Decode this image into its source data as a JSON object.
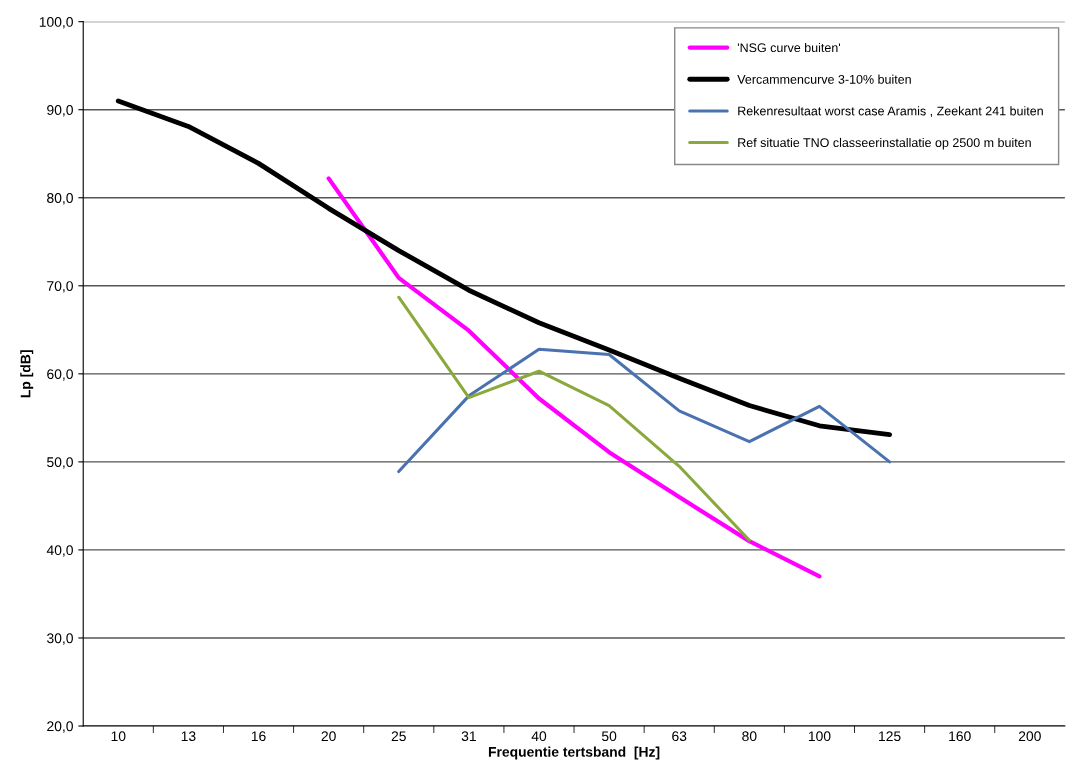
{
  "chart_data": {
    "type": "line",
    "xlabel": "Frequentie tertsband  [Hz]",
    "ylabel": "Lp [dB]",
    "categories": [
      "10",
      "13",
      "16",
      "20",
      "25",
      "31",
      "40",
      "50",
      "63",
      "80",
      "100",
      "125",
      "160",
      "200"
    ],
    "series": [
      {
        "name": "'NSG curve buiten'",
        "color": "#ff00ff",
        "values": [
          null,
          null,
          null,
          82.2,
          70.9,
          64.9,
          57.2,
          51.1,
          46.0,
          41.0,
          37.0,
          null,
          null,
          null
        ]
      },
      {
        "name": "Vercammencurve 3-10% buiten",
        "color": "#000000",
        "values": [
          91.0,
          88.1,
          83.9,
          78.8,
          74.0,
          69.5,
          65.8,
          62.7,
          59.5,
          56.4,
          54.1,
          53.1,
          null,
          null
        ]
      },
      {
        "name": "Rekenresultaat worst case Aramis , Zeekant 241 buiten",
        "color": "#4a72b0",
        "values": [
          null,
          null,
          null,
          null,
          48.9,
          57.5,
          62.8,
          62.2,
          55.8,
          52.3,
          56.3,
          50.0,
          null,
          null
        ]
      },
      {
        "name": "Ref situatie TNO classeerinstallatie op 2500 m buiten",
        "color": "#8aa83c",
        "values": [
          null,
          null,
          null,
          null,
          68.7,
          57.3,
          60.3,
          56.4,
          49.5,
          41.1,
          null,
          null,
          null,
          null
        ]
      }
    ],
    "ylim": [
      20,
      100
    ],
    "yticks": [
      {
        "value": 20,
        "label": "20,0"
      },
      {
        "value": 30,
        "label": "30,0"
      },
      {
        "value": 40,
        "label": "40,0"
      },
      {
        "value": 50,
        "label": "50,0"
      },
      {
        "value": 60,
        "label": "60,0"
      },
      {
        "value": 70,
        "label": "70,0"
      },
      {
        "value": 80,
        "label": "80,0"
      },
      {
        "value": 90,
        "label": "90,0"
      },
      {
        "value": 100,
        "label": "100,0"
      }
    ],
    "grid": "y",
    "legend": "top right",
    "marker": "none",
    "line_style": "solid"
  }
}
